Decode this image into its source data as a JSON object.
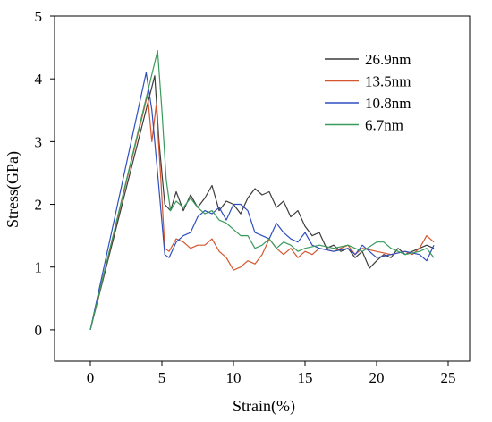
{
  "chart_data": {
    "type": "line",
    "x_label": "Strain(%)",
    "y_label": "Stress(GPa)",
    "xlim": [
      -2.5,
      26.5
    ],
    "ylim": [
      -0.5,
      5
    ],
    "xticks": [
      0,
      5,
      10,
      15,
      20,
      25
    ],
    "yticks": [
      0,
      1,
      2,
      3,
      4,
      5
    ],
    "legend": "upper right",
    "series": [
      {
        "name": "26.9nm",
        "color": "#3c3c3c",
        "x": [
          0,
          4.5,
          4.8,
          5.2,
          5.6,
          6,
          6.5,
          7,
          7.5,
          8,
          8.5,
          9,
          9.5,
          10,
          10.5,
          11,
          11.5,
          12,
          12.5,
          13,
          13.5,
          14,
          14.5,
          15,
          15.5,
          16,
          16.5,
          17,
          17.5,
          18,
          18.5,
          19,
          19.5,
          20,
          20.5,
          21,
          21.5,
          22,
          22.5,
          23,
          23.5,
          24
        ],
        "values": [
          0,
          4.05,
          3.0,
          2.0,
          1.9,
          2.2,
          1.9,
          2.15,
          1.95,
          2.1,
          2.3,
          1.9,
          2.05,
          2.0,
          1.85,
          2.1,
          2.25,
          2.15,
          2.2,
          1.95,
          2.05,
          1.8,
          1.9,
          1.65,
          1.5,
          1.55,
          1.3,
          1.35,
          1.25,
          1.3,
          1.15,
          1.25,
          0.98,
          1.1,
          1.2,
          1.15,
          1.3,
          1.2,
          1.25,
          1.3,
          1.35,
          1.3
        ]
      },
      {
        "name": "13.5nm",
        "color": "#d4562e",
        "x": [
          0,
          4.0,
          4.3,
          4.6,
          4.9,
          5.2,
          5.5,
          6,
          6.5,
          7,
          7.5,
          8,
          8.5,
          9,
          9.5,
          10,
          10.5,
          11,
          11.5,
          12,
          12.5,
          13,
          13.5,
          14,
          14.5,
          15,
          15.5,
          16,
          17,
          18,
          18.5,
          19,
          20,
          21,
          22,
          22.5,
          23,
          23.5,
          24
        ],
        "values": [
          0,
          3.75,
          3.0,
          3.58,
          2.5,
          1.3,
          1.25,
          1.45,
          1.4,
          1.3,
          1.35,
          1.35,
          1.45,
          1.25,
          1.15,
          0.95,
          1.0,
          1.1,
          1.05,
          1.2,
          1.45,
          1.3,
          1.2,
          1.3,
          1.15,
          1.25,
          1.2,
          1.3,
          1.25,
          1.35,
          1.2,
          1.3,
          1.25,
          1.2,
          1.25,
          1.2,
          1.3,
          1.5,
          1.4
        ]
      },
      {
        "name": "10.8nm",
        "color": "#2f4fbf",
        "x": [
          0,
          3.9,
          4.3,
          4.7,
          5.2,
          5.5,
          6,
          6.5,
          7,
          7.5,
          8,
          8.5,
          9,
          9.5,
          10,
          10.5,
          11,
          11.5,
          12,
          12.5,
          13,
          13.5,
          14,
          14.5,
          15,
          15.5,
          16,
          17,
          18,
          18.5,
          19,
          19.5,
          20,
          21,
          22,
          23,
          23.5,
          24
        ],
        "values": [
          0,
          4.1,
          3.5,
          2.5,
          1.2,
          1.15,
          1.4,
          1.5,
          1.55,
          1.8,
          1.9,
          1.85,
          1.95,
          1.75,
          2.0,
          2.0,
          1.9,
          1.55,
          1.5,
          1.45,
          1.7,
          1.55,
          1.45,
          1.4,
          1.55,
          1.35,
          1.3,
          1.25,
          1.3,
          1.2,
          1.35,
          1.25,
          1.15,
          1.2,
          1.25,
          1.2,
          1.1,
          1.35
        ]
      },
      {
        "name": "6.7nm",
        "color": "#3a9a5c",
        "x": [
          0,
          4.7,
          5.0,
          5.3,
          5.6,
          6,
          6.5,
          7,
          7.5,
          8,
          8.5,
          9,
          9.5,
          10,
          10.5,
          11,
          11.5,
          12,
          12.5,
          13,
          13.5,
          14,
          14.5,
          15,
          16,
          17,
          18,
          19,
          20,
          20.5,
          21,
          22,
          23,
          23.5,
          24
        ],
        "values": [
          0,
          4.45,
          3.5,
          2.4,
          1.9,
          2.05,
          1.95,
          2.1,
          1.95,
          1.85,
          1.9,
          1.75,
          1.7,
          1.6,
          1.5,
          1.5,
          1.3,
          1.35,
          1.45,
          1.3,
          1.4,
          1.35,
          1.25,
          1.3,
          1.35,
          1.3,
          1.35,
          1.25,
          1.4,
          1.4,
          1.3,
          1.2,
          1.25,
          1.3,
          1.15
        ]
      }
    ]
  }
}
